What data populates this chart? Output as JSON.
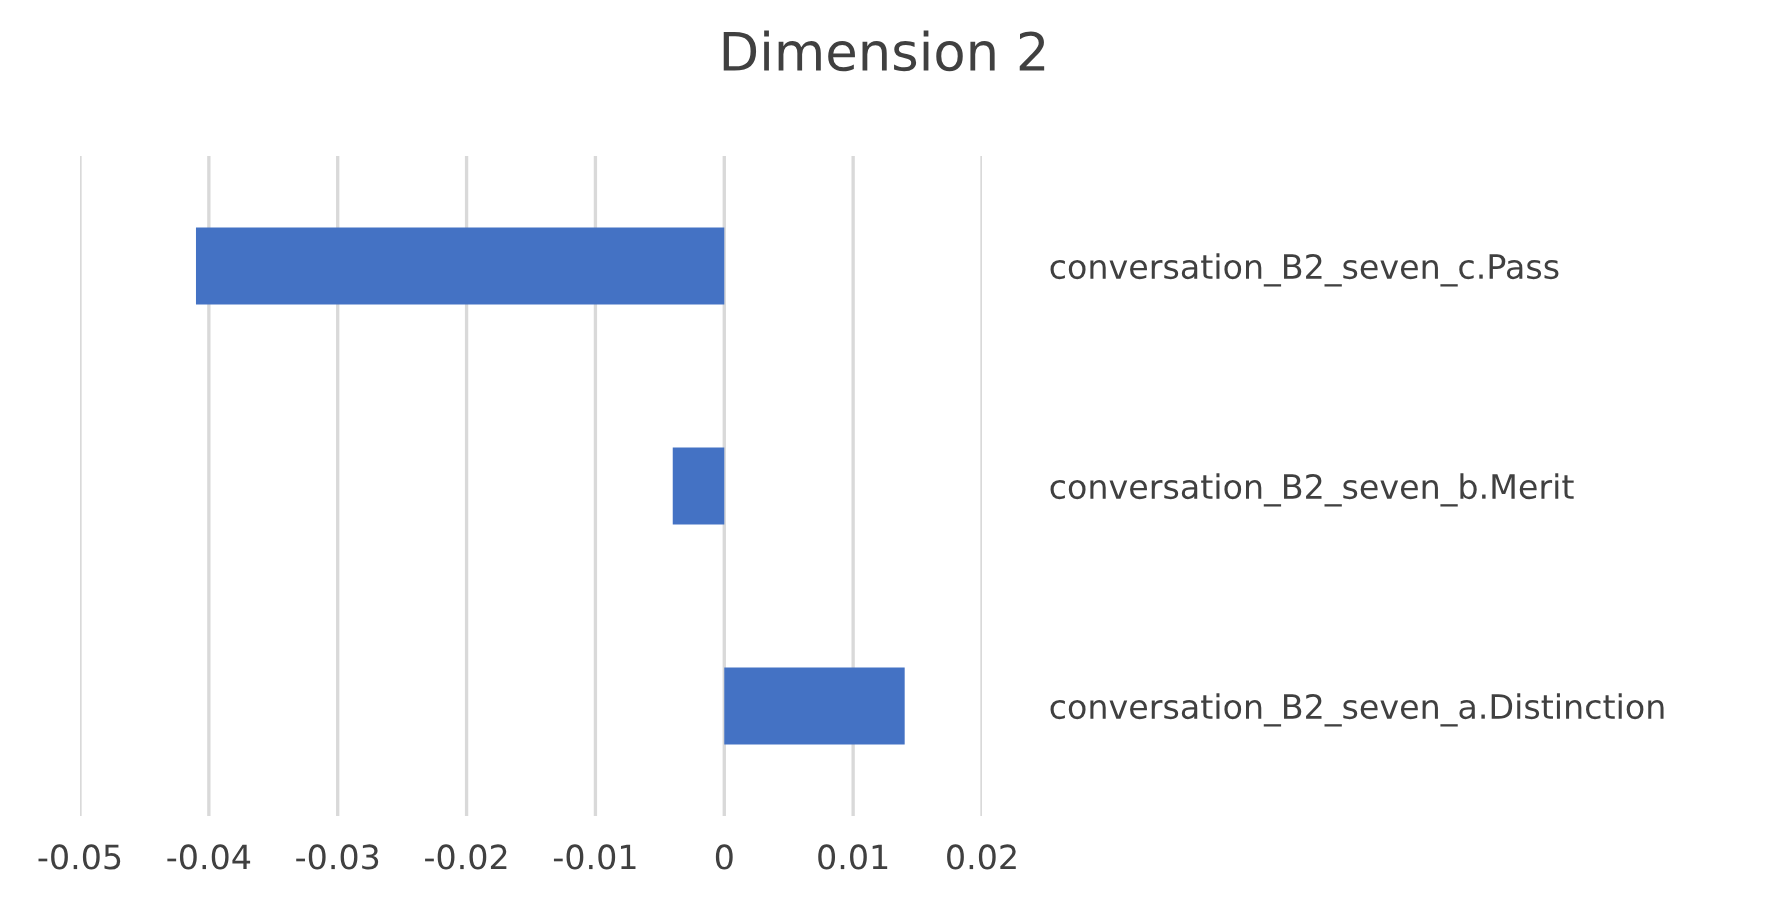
{
  "chart_data": {
    "type": "bar",
    "orientation": "horizontal",
    "title": "Dimension 2",
    "categories": [
      "conversation_B2_seven_c.Pass",
      "conversation_B2_seven_b.Merit",
      "conversation_B2_seven_a.Distinction"
    ],
    "values": [
      -0.041,
      -0.004,
      0.014
    ],
    "color": "#4472c4",
    "xlim": [
      -0.05,
      0.02
    ],
    "xticks": [
      -0.05,
      -0.04,
      -0.03,
      -0.02,
      -0.01,
      0,
      0.01,
      0.02
    ],
    "grid": "x"
  }
}
